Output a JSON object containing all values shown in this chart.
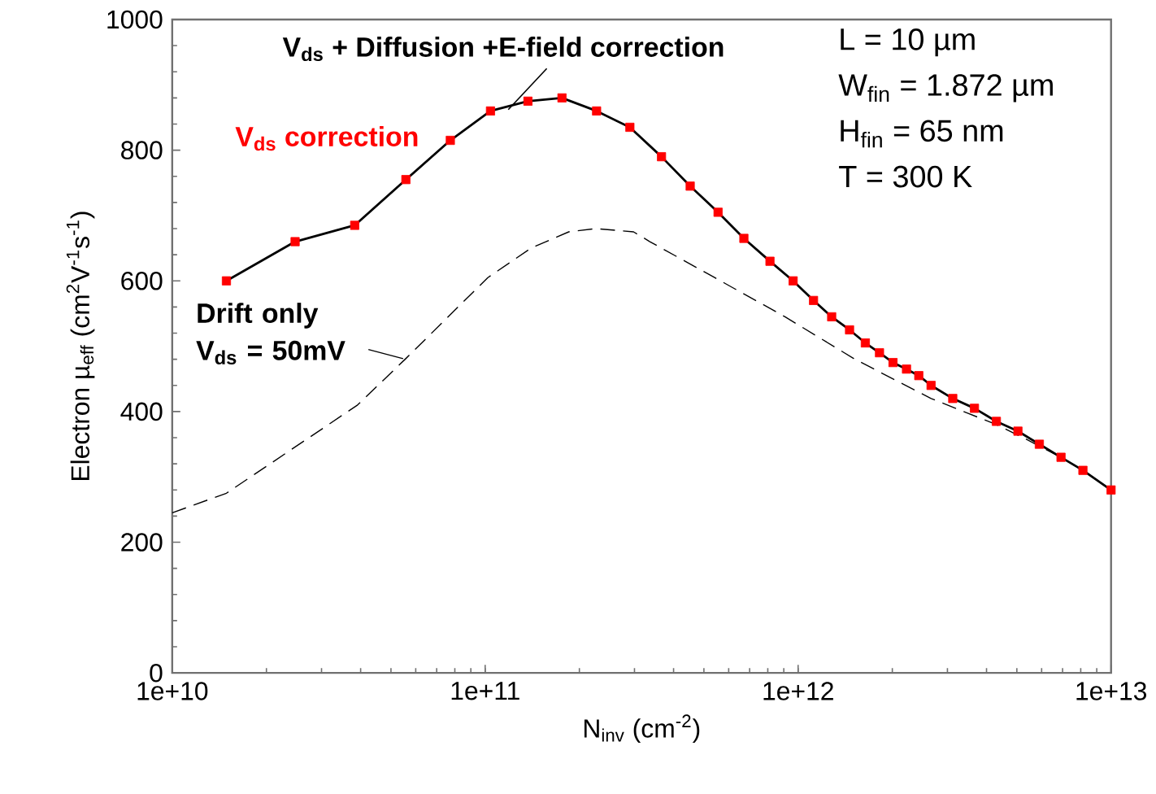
{
  "chart_data": {
    "type": "line",
    "xlabel": "N$_{inv}$ (cm$^{-2}$)",
    "ylabel": "Electron µ$_{eff}$ (cm$^{2}$V$^{-1}$s$^{-1}$)",
    "log": "x",
    "xlim": [
      10000000000.0,
      10000000000000.0
    ],
    "xticks": [
      {
        "value": 10000000000.0,
        "label": "1e+10"
      },
      {
        "value": 100000000000.0,
        "label": "1e+11"
      },
      {
        "value": 1000000000000.0,
        "label": "1e+12"
      },
      {
        "value": 10000000000000.0,
        "label": "1e+13"
      }
    ],
    "ylim": [
      0,
      1000
    ],
    "yticks": [
      0,
      200,
      400,
      600,
      800,
      1000
    ],
    "grid": false,
    "series": [
      {
        "name": "V$_{ds}$ + Diffusion +E-field correction",
        "color": "#000000",
        "marker": "none",
        "line_style": "solid",
        "x": [
          14900000000.0,
          24700000000.0,
          38300000000.0,
          55800000000.0,
          77400000000.0,
          104000000000.0,
          137000000000.0,
          176000000000.0,
          227000000000.0,
          290000000000.0,
          366000000000.0,
          452000000000.0,
          555000000000.0,
          671000000000.0,
          813000000000.0,
          964000000000.0,
          1120000000000.0,
          1280000000000.0,
          1460000000000.0,
          1640000000000.0,
          1820000000000.0,
          2010000000000.0,
          2220000000000.0,
          2430000000000.0,
          2660000000000.0,
          3120000000000.0,
          3660000000000.0,
          4300000000000.0,
          5040000000000.0,
          5900000000000.0,
          6920000000000.0,
          8130000000000.0,
          10000000000000.0
        ],
        "values": [
          600,
          660,
          685,
          755,
          815,
          860,
          875,
          880,
          860,
          835,
          790,
          745,
          705,
          665,
          630,
          600,
          570,
          545,
          525,
          505,
          490,
          475,
          465,
          455,
          440,
          420,
          405,
          385,
          370,
          350,
          330,
          310,
          280
        ]
      },
      {
        "name": "V$_{ds}$ correction",
        "type": "scatter",
        "color": "#ff0000",
        "marker": "square",
        "x": [
          14900000000.0,
          24700000000.0,
          38300000000.0,
          55800000000.0,
          77400000000.0,
          104000000000.0,
          137000000000.0,
          176000000000.0,
          227000000000.0,
          290000000000.0,
          366000000000.0,
          452000000000.0,
          555000000000.0,
          671000000000.0,
          813000000000.0,
          964000000000.0,
          1120000000000.0,
          1280000000000.0,
          1460000000000.0,
          1640000000000.0,
          1820000000000.0,
          2010000000000.0,
          2220000000000.0,
          2430000000000.0,
          2660000000000.0,
          3120000000000.0,
          3660000000000.0,
          4300000000000.0,
          5040000000000.0,
          5900000000000.0,
          6920000000000.0,
          8130000000000.0,
          10000000000000.0
        ],
        "values": [
          600,
          660,
          685,
          755,
          815,
          860,
          875,
          880,
          860,
          835,
          790,
          745,
          705,
          665,
          630,
          600,
          570,
          545,
          525,
          505,
          490,
          475,
          465,
          455,
          440,
          420,
          405,
          385,
          370,
          350,
          330,
          310,
          280
        ]
      },
      {
        "name": "Drift only V$_{ds}$ = 50mV",
        "color": "#000000",
        "marker": "none",
        "line_style": "dashed",
        "x": [
          10000000000.0,
          14900000000.0,
          39100000000.0,
          55500000000.0,
          102000000000.0,
          140000000000.0,
          185000000000.0,
          225000000000.0,
          298000000000.0,
          336000000000.0,
          541000000000.0,
          908000000000.0,
          1520000000000.0,
          2660000000000.0,
          4300000000000.0,
          5240000000000.0,
          6920000000000.0,
          8130000000000.0,
          10000000000000.0
        ],
        "values": [
          245,
          275,
          410,
          480,
          605,
          650,
          675,
          680,
          675,
          660,
          605,
          545,
          480,
          420,
          380,
          360,
          330,
          310,
          280
        ]
      }
    ],
    "annotations": [
      "L = 10 µm",
      "W$_{fin}$ = 1.872 µm",
      "H$_{fin}$ = 65 nm",
      "T = 300 K"
    ]
  }
}
